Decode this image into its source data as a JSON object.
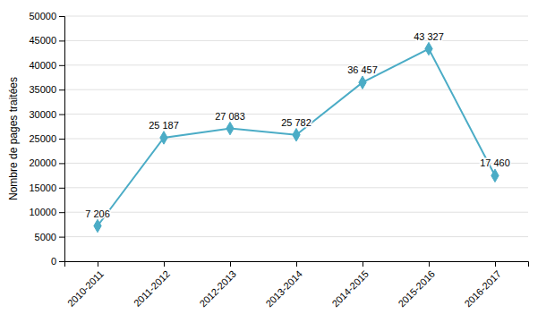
{
  "chart_data": {
    "type": "line",
    "categories": [
      "2010-2011",
      "2011-2012",
      "2012-2013",
      "2013-2014",
      "2014-2015",
      "2015-2016",
      "2016-2017"
    ],
    "values": [
      7206,
      25187,
      27083,
      25782,
      36457,
      43327,
      17460
    ],
    "value_labels": [
      "7 206",
      "25 187",
      "27 083",
      "25 782",
      "36 457",
      "43 327",
      "17 460"
    ],
    "data_labels": true,
    "color": "#4BACC6",
    "marker": "diamond",
    "y_label": "Nombre de pages traitées",
    "ylim": [
      0,
      50000
    ],
    "yticks": [
      0,
      5000,
      10000,
      15000,
      20000,
      25000,
      30000,
      35000,
      40000,
      45000,
      50000
    ],
    "grid": true
  }
}
